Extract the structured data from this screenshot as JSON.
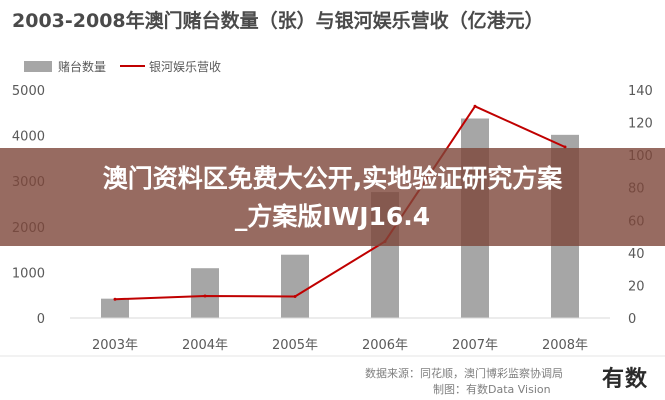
{
  "chart_data": {
    "type": "bar+line",
    "title": "2003-2008年澳门赌台数量（张）与银河娱乐营收（亿港元）",
    "categories": [
      "2003年",
      "2004年",
      "2005年",
      "2006年",
      "2007年",
      "2008年"
    ],
    "series": [
      {
        "name": "赌台数量",
        "type": "bar",
        "axis": "left",
        "color": "#a6a6a6",
        "values": [
          424,
          1092,
          1388,
          2762,
          4375,
          4017
        ]
      },
      {
        "name": "银河娱乐营收",
        "type": "line",
        "axis": "right",
        "color": "#c00000",
        "values": [
          11.5,
          13.5,
          13.2,
          47,
          130,
          105
        ]
      }
    ],
    "left_axis": {
      "ylim": [
        0,
        5000
      ],
      "ticks": [
        "0",
        "1000",
        "2000",
        "3000",
        "4000",
        "5000"
      ]
    },
    "right_axis": {
      "ylim": [
        0,
        140
      ],
      "ticks": [
        "0",
        "20",
        "40",
        "60",
        "80",
        "100",
        "120",
        "140"
      ]
    },
    "legend_position": "top-left",
    "grid": false
  },
  "source_line1": "数据来源：同花顺，澳门博彩监察协调局",
  "source_line2": "制图：有数Data Vision",
  "logo": "有数",
  "banner": {
    "line1": "澳门资料区免费大公开,实地验证研究方案",
    "line2": "_方案版IWJ16.4"
  },
  "colors": {
    "banner_bg": "#7d463a",
    "bar": "#a6a6a6",
    "line": "#c00000"
  }
}
